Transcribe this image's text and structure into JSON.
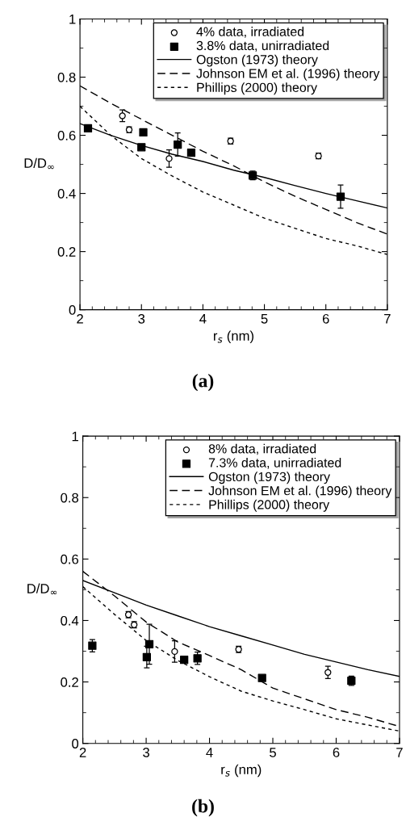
{
  "chart_data": [
    {
      "type": "scatter",
      "title": "(a)",
      "xlabel": "r$_{s}$ (nm)",
      "ylabel": "D/D$_{∞}$",
      "xlim": [
        2,
        7
      ],
      "ylim": [
        0,
        1
      ],
      "xticks": [
        2,
        3,
        4,
        5,
        6,
        7
      ],
      "yticks": [
        0,
        0.2,
        0.4,
        0.6,
        0.8,
        1
      ],
      "grid": false,
      "legend": "top right",
      "series": [
        {
          "name": "4% data, irradiated",
          "marker": "circle",
          "color": "#000000",
          "x": [
            2.69,
            2.8,
            3.45,
            4.45,
            5.88
          ],
          "values": [
            0.667,
            0.619,
            0.52,
            0.58,
            0.529
          ],
          "errors": [
            0.02,
            0.01,
            0.03,
            0.01,
            0.01
          ]
        },
        {
          "name": "3.8% data, unirradiated",
          "marker": "square",
          "color": "#000000",
          "x": [
            2.13,
            3.03,
            3.0,
            3.59,
            3.81,
            4.81,
            6.24
          ],
          "values": [
            0.624,
            0.61,
            0.559,
            0.568,
            0.54,
            0.462,
            0.389
          ],
          "errors": [
            null,
            null,
            null,
            0.04,
            null,
            0.015,
            0.04
          ]
        },
        {
          "name": "Ogston (1973) theory",
          "type": "line",
          "line_style": "solid",
          "color": "#000000",
          "x": [
            2,
            2.5,
            3,
            3.5,
            4,
            4.5,
            5,
            5.5,
            6,
            6.5,
            7
          ],
          "values": [
            0.64,
            0.6,
            0.565,
            0.535,
            0.51,
            0.48,
            0.455,
            0.427,
            0.4,
            0.375,
            0.35
          ]
        },
        {
          "name": "Johnson EM et al. (1996) theory",
          "type": "line",
          "line_style": "dashed",
          "color": "#000000",
          "x": [
            2,
            2.5,
            3,
            3.5,
            4,
            4.5,
            5,
            5.5,
            6,
            6.5,
            7
          ],
          "values": [
            0.77,
            0.71,
            0.655,
            0.6,
            0.545,
            0.495,
            0.44,
            0.39,
            0.345,
            0.3,
            0.26
          ]
        },
        {
          "name": "Phillips (2000) theory",
          "type": "line",
          "line_style": "dotted",
          "color": "#000000",
          "x": [
            2,
            2.5,
            3,
            3.5,
            4,
            4.5,
            5,
            5.5,
            6,
            6.5,
            7
          ],
          "values": [
            0.7,
            0.6,
            0.52,
            0.46,
            0.405,
            0.36,
            0.315,
            0.28,
            0.245,
            0.22,
            0.19
          ]
        }
      ]
    },
    {
      "type": "scatter",
      "title": "(b)",
      "xlabel": "r$_{s}$ (nm)",
      "ylabel": "D/D$_{∞}$",
      "xlim": [
        2,
        7
      ],
      "ylim": [
        0,
        1
      ],
      "xticks": [
        2,
        3,
        4,
        5,
        6,
        7
      ],
      "yticks": [
        0,
        0.2,
        0.4,
        0.6,
        0.8,
        1
      ],
      "grid": false,
      "legend": "top right",
      "series": [
        {
          "name": "8% data, irradiated",
          "marker": "circle",
          "color": "#000000",
          "x": [
            2.72,
            2.81,
            3.45,
            4.46,
            5.87
          ],
          "values": [
            0.419,
            0.386,
            0.299,
            0.306,
            0.231
          ],
          "errors": [
            0.01,
            0.01,
            0.035,
            0.01,
            0.02
          ]
        },
        {
          "name": "7.3% data, unirradiated",
          "marker": "square",
          "color": "#000000",
          "x": [
            2.15,
            3.01,
            3.05,
            3.6,
            3.81,
            4.83,
            6.24
          ],
          "values": [
            0.318,
            0.281,
            0.323,
            0.272,
            0.277,
            0.213,
            0.204
          ],
          "errors": [
            0.02,
            0.035,
            0.065,
            null,
            0.02,
            null,
            0.015
          ]
        },
        {
          "name": "Ogston (1973) theory",
          "type": "line",
          "line_style": "solid",
          "color": "#000000",
          "x": [
            2,
            2.5,
            3,
            3.5,
            4,
            4.5,
            5,
            5.5,
            6,
            6.5,
            7
          ],
          "values": [
            0.53,
            0.49,
            0.45,
            0.415,
            0.38,
            0.35,
            0.32,
            0.29,
            0.265,
            0.24,
            0.218
          ]
        },
        {
          "name": "Johnson EM et al. (1996) theory",
          "type": "line",
          "line_style": "dashed",
          "color": "#000000",
          "x": [
            2,
            2.5,
            3,
            3.5,
            4,
            4.5,
            5,
            5.5,
            6,
            6.5,
            7
          ],
          "values": [
            0.56,
            0.48,
            0.395,
            0.33,
            0.286,
            0.24,
            0.18,
            0.145,
            0.11,
            0.085,
            0.055
          ]
        },
        {
          "name": "Phillips (2000) theory",
          "type": "line",
          "line_style": "dotted",
          "color": "#000000",
          "x": [
            2,
            2.5,
            3,
            3.5,
            4,
            4.5,
            5,
            5.5,
            6,
            6.5,
            7
          ],
          "values": [
            0.51,
            0.42,
            0.335,
            0.27,
            0.217,
            0.17,
            0.138,
            0.11,
            0.08,
            0.06,
            0.04
          ]
        }
      ]
    }
  ]
}
